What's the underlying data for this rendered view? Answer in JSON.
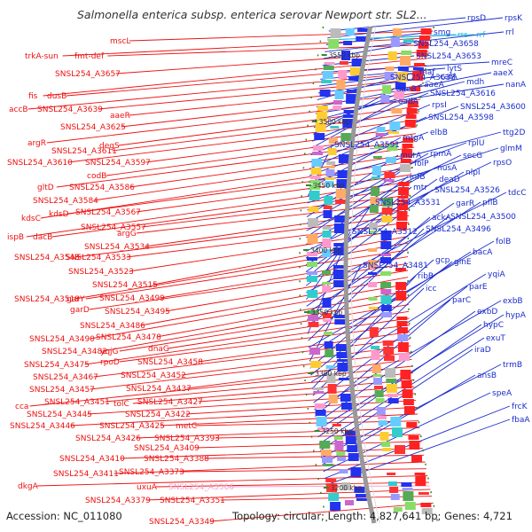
{
  "title": "Salmonella enterica subsp. enterica serovar Newport str. SL2...",
  "footer": {
    "accession": "Accession: NC_011080",
    "summary": "Topology: circular; Length: 4,827,641 bp; Genes: 4,721"
  },
  "colors": {
    "forward_strand": "#1a2ccc",
    "reverse_strand": "#ee1111",
    "rna_label": "#22bbdd",
    "pseudo_label": "#f2a0cc",
    "backbone": "#999999",
    "scale_tick": "#2a8a2a"
  },
  "scale_labels": [
    "3550 kbp",
    "3500 kbp",
    "3450 kbp",
    "3400 kbp",
    "3350 kbp",
    "3300 kbp",
    "3250 kbp",
    "3200 kbp"
  ],
  "left_labels": [
    "mscL",
    "trkA-sun",
    "fmt-def",
    "SNSL254_A3657",
    "fis",
    "dusB",
    "accB",
    "SNSL254_A3639",
    "aaeR",
    "SNSL254_A3625",
    "argR",
    "degS",
    "SNSL254_A3611",
    "SNSL254_A3610",
    "SNSL254_A3597",
    "codB",
    "gltD",
    "SNSL254_A3586",
    "SNSL254_A3584",
    "kdsC",
    "kdsD",
    "SNSL254_A3567",
    "ispB",
    "dacB",
    "SNSL254_A3557",
    "argG",
    "SNSL254_A3534",
    "SNSL254_A3548",
    "SNSL254_A3533",
    "SNSL254_A3523",
    "SNSL254_A3515",
    "SNSL254_A3518",
    "garY",
    "SNSL254_A3499",
    "garD",
    "SNSL254_A3495",
    "SNSL254_A3486",
    "SNSL254_A3490",
    "SNSL254_A3478",
    "SNSL254_A3482",
    "yqjG",
    "dnaG",
    "SNSL254_A3475",
    "rpoD",
    "SNSL254_A3458",
    "SNSL254_A3467",
    "SNSL254_A3452",
    "SNSL254_A3457",
    "SNSL254_A3437",
    "cca",
    "SNSL254_A3451",
    "tolC",
    "SNSL254_A3427",
    "SNSL254_A3445",
    "SNSL254_A3422",
    "SNSL254_A3446",
    "SNSL254_A3425",
    "metC",
    "SNSL254_A3426",
    "SNSL254_A3393",
    "SNSL254_A3409",
    "SNSL254_A3410",
    "SNSL254_A3388",
    "SNSL254_A3411",
    "SNSL254_A3373",
    "dkgA",
    "uxuA",
    "SNSL254_A3379",
    "SNSL254_A3351",
    "SNSL254_A3349"
  ],
  "pseudo_labels": [
    "SNSL254_A3366"
  ],
  "right_labels": [
    "rpsD",
    "rpsK",
    "smg",
    "rrl",
    "SNSL254_A3658",
    "SNSL254_A3653",
    "mreC",
    "lytS",
    "SNSL254_A3638",
    "cafA",
    "maf",
    "aaeX",
    "nanA",
    "mdh",
    "aaeA",
    "aaeB",
    "SNSL254_A3616",
    "oadA",
    "rpsI",
    "SNSL254_A3600",
    "SNSL254_A3598",
    "elbB",
    "ttg2D",
    "mtgA",
    "SNSL254_A3591",
    "rplU",
    "glmM",
    "murA",
    "rpmA",
    "secG",
    "folP",
    "nusA",
    "rpsO",
    "infB",
    "nlpI",
    "deaD",
    "mtr",
    "SNSL254_A3526",
    "tdcC",
    "SNSL254_A3531",
    "garR",
    "pflB",
    "ackA",
    "SNSL254_A3500",
    "SNSL254_A3512",
    "SNSL254_A3496",
    "folB",
    "bacA",
    "SNSL254_A3481",
    "gcp",
    "glnE",
    "yqiA",
    "ribB",
    "icc",
    "parE",
    "exbB",
    "parC",
    "exbD",
    "hypA",
    "hypC",
    "exuT",
    "iraD",
    "trmB",
    "ansB",
    "speA",
    "frcK",
    "fbaA"
  ],
  "rna_labels": [
    "rrs",
    "rrf"
  ]
}
